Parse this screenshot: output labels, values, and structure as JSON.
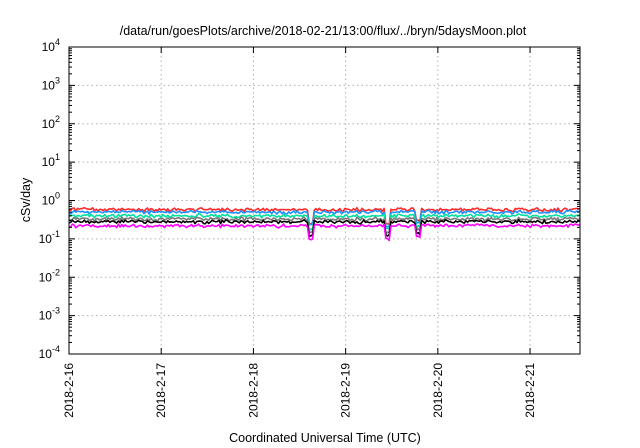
{
  "chart_data": {
    "type": "line",
    "title": "/data/run/goesPlots/archive/2018-02-21/13:00/flux/../bryn/5daysMoon.plot",
    "xlabel": "Coordinated Universal Time (UTC)",
    "ylabel": "cSv/day",
    "yscale": "log",
    "ylim": [
      0.0001,
      10000
    ],
    "xlim": [
      "2018-02-16",
      "2018-02-21 13:00"
    ],
    "grid": true,
    "x_ticks": [
      "2018-2-16",
      "2018-2-17",
      "2018-2-18",
      "2018-2-19",
      "2018-2-20",
      "2018-2-21"
    ],
    "y_ticks": [
      {
        "base": "10",
        "exp": "-4"
      },
      {
        "base": "10",
        "exp": "-3"
      },
      {
        "base": "10",
        "exp": "-2"
      },
      {
        "base": "10",
        "exp": "-1"
      },
      {
        "base": "10",
        "exp": "0"
      },
      {
        "base": "10",
        "exp": "1"
      },
      {
        "base": "10",
        "exp": "2"
      },
      {
        "base": "10",
        "exp": "3"
      },
      {
        "base": "10",
        "exp": "4"
      }
    ],
    "series": [
      {
        "color": "#ff2a2a",
        "level": 0.58
      },
      {
        "color": "#1e90ff",
        "level": 0.5
      },
      {
        "color": "#00e0a0",
        "level": 0.4
      },
      {
        "color": "#7a7a7a",
        "level": 0.33
      },
      {
        "color": "#000000",
        "level": 0.28
      },
      {
        "color": "#ff00ff",
        "level": 0.22
      }
    ],
    "dips": [
      {
        "x": "2018-02-18 15:00",
        "depth": 0.45
      },
      {
        "x": "2018-02-19 11:00",
        "depth": 0.45
      },
      {
        "x": "2018-02-19 19:00",
        "depth": 0.5
      }
    ]
  }
}
